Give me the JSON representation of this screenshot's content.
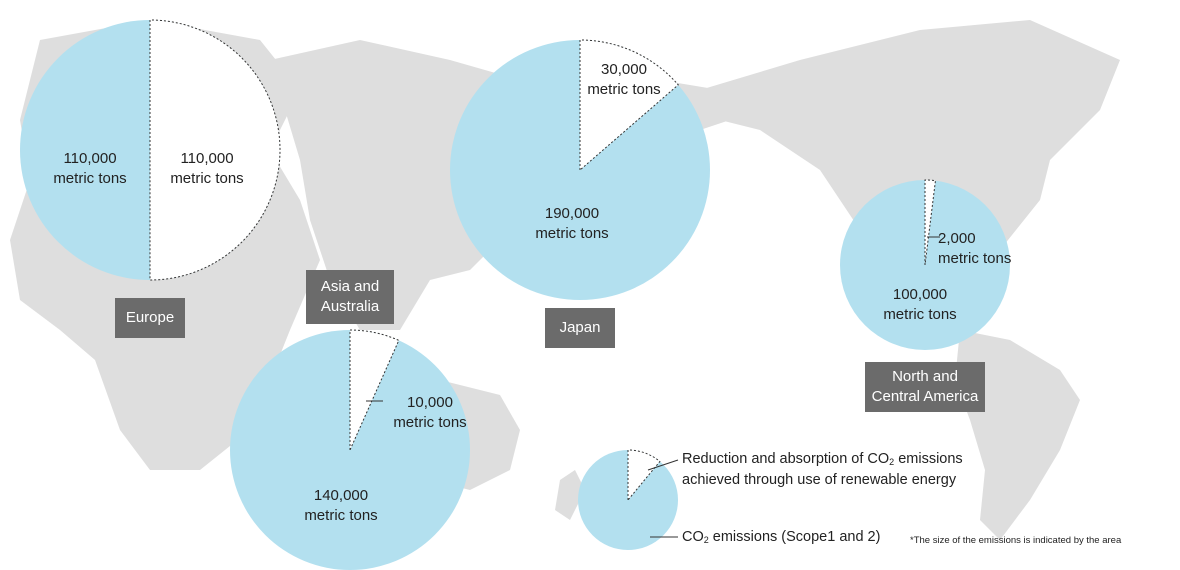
{
  "colors": {
    "emissions": "#b3e0ef",
    "reduction": "#ffffff",
    "map": "#dedede",
    "label_bg": "#6b6b6b"
  },
  "chart_data": {
    "type": "pie",
    "unit": "metric tons",
    "series_names": [
      "CO2 emissions (Scope1 and 2)",
      "Reduction and absorption of CO2 emissions achieved through use of renewable energy"
    ],
    "regions": [
      {
        "name": "Europe",
        "emissions": 110000,
        "reduction": 110000,
        "emissions_label": "110,000",
        "reduction_label": "110,000"
      },
      {
        "name": "Japan",
        "emissions": 190000,
        "reduction": 30000,
        "emissions_label": "190,000",
        "reduction_label": "30,000"
      },
      {
        "name": "Asia and Australia",
        "emissions": 140000,
        "reduction": 10000,
        "emissions_label": "140,000",
        "reduction_label": "10,000"
      },
      {
        "name": "North and Central America",
        "emissions": 100000,
        "reduction": 2000,
        "emissions_label": "100,000",
        "reduction_label": "2,000"
      }
    ]
  },
  "labels": {
    "europe": [
      "Europe"
    ],
    "japan": [
      "Japan"
    ],
    "asia": [
      "Asia and",
      "Australia"
    ],
    "america": [
      "North and",
      "Central America"
    ],
    "unit": "metric tons"
  },
  "legend": {
    "reduction_prefix": "Reduction and absorption of CO",
    "reduction_suffix": " emissions",
    "reduction_line2": "achieved through use of renewable energy",
    "emissions_prefix": "CO",
    "emissions_suffix": " emissions (Scope1 and 2)",
    "subscript": "2"
  },
  "note": "*The size of the emissions is indicated by the area"
}
